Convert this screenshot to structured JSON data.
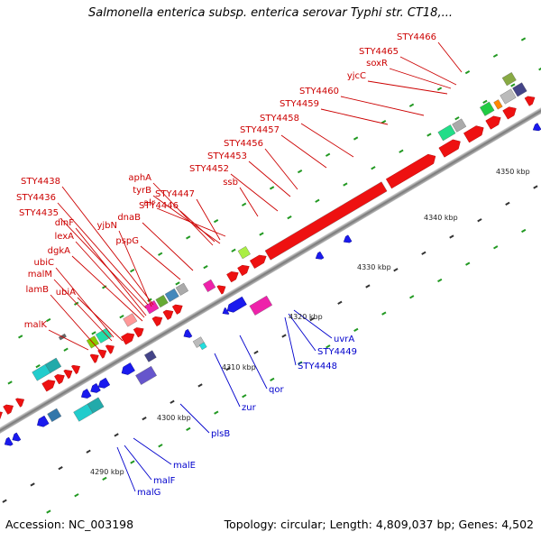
{
  "title": "Salmonella enterica subsp. enterica serovar Typhi str. CT18,...",
  "footer": {
    "accession": "Accession: NC_003198",
    "topology": "Topology: circular; Length: 4,809,037 bp; Genes: 4,502"
  },
  "colors": {
    "forward_label": "#cc0000",
    "reverse_label": "#0000cc",
    "forward_gene": "#ee1111",
    "reverse_gene": "#1a1aee",
    "backbone": "#8a8a8a",
    "tick": "#229922"
  },
  "scale_labels": [
    "4290 kbp",
    "4300 kbp",
    "4310 kbp",
    "4320 kbp",
    "4330 kbp",
    "4340 kbp",
    "4350 kbp"
  ],
  "forward_labels": [
    "STY4466",
    "STY4465",
    "soxR",
    "yjcC",
    "STY4460",
    "STY4459",
    "STY4458",
    "STY4457",
    "STY4456",
    "STY4453",
    "STY4452",
    "ssb",
    "aphA",
    "tyrB",
    "alr",
    "STY4447",
    "STY4446",
    "dnaB",
    "STY4438",
    "STY4436",
    "STY4435",
    "yjbN",
    "pspG",
    "dinF",
    "lexA",
    "dgkA",
    "ubiC",
    "malM",
    "lamB",
    "ubiA",
    "malK"
  ],
  "reverse_labels": [
    "uvrA",
    "STY4449",
    "STY4448",
    "qor",
    "zur",
    "plsB",
    "malE",
    "malF",
    "malG"
  ]
}
